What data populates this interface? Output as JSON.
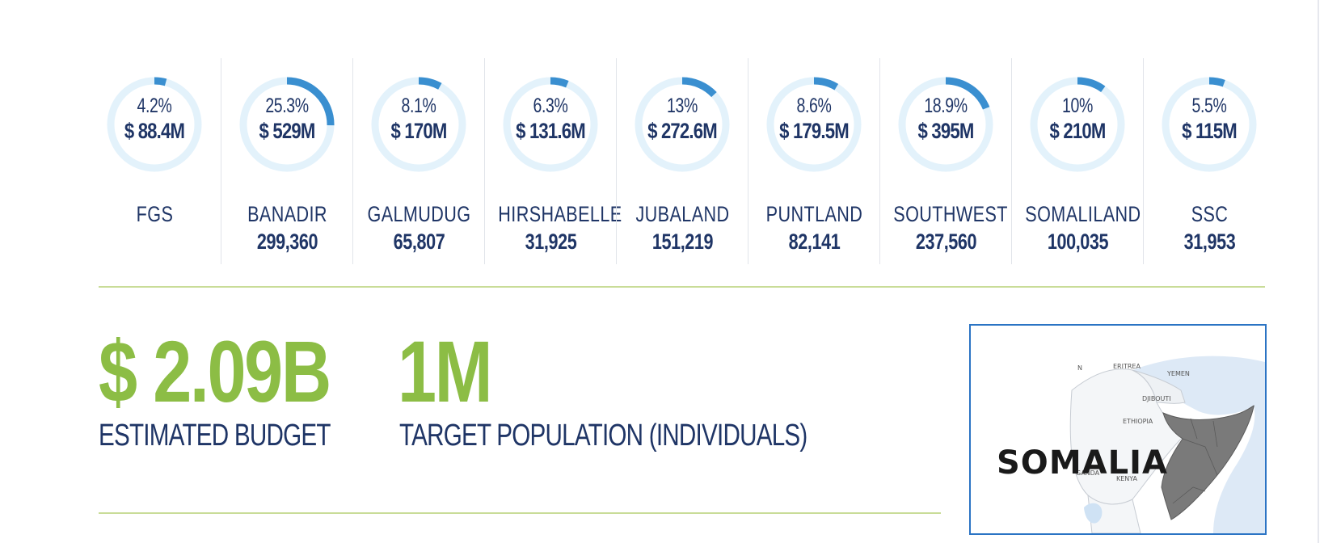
{
  "chart_data": {
    "type": "donut",
    "regions": [
      {
        "name": "FGS",
        "percent": 4.2,
        "percent_label": "4.2%",
        "amount_label": "$ 88.4M",
        "population": ""
      },
      {
        "name": "BANADIR",
        "percent": 25.3,
        "percent_label": "25.3%",
        "amount_label": "$ 529M",
        "population": "299,360"
      },
      {
        "name": "GALMUDUG",
        "percent": 8.1,
        "percent_label": "8.1%",
        "amount_label": "$ 170M",
        "population": "65,807"
      },
      {
        "name": "HIRSHABELLE",
        "percent": 6.3,
        "percent_label": "6.3%",
        "amount_label": "$ 131.6M",
        "population": "31,925"
      },
      {
        "name": "JUBALAND",
        "percent": 13,
        "percent_label": "13%",
        "amount_label": "$ 272.6M",
        "population": "151,219"
      },
      {
        "name": "PUNTLAND",
        "percent": 8.6,
        "percent_label": "8.6%",
        "amount_label": "$ 179.5M",
        "population": "82,141"
      },
      {
        "name": "SOUTHWEST",
        "percent": 18.9,
        "percent_label": "18.9%",
        "amount_label": "$ 395M",
        "population": "237,560"
      },
      {
        "name": "SOMALILAND",
        "percent": 10,
        "percent_label": "10%",
        "amount_label": "$ 210M",
        "population": "100,035"
      },
      {
        "name": "SSC",
        "percent": 5.5,
        "percent_label": "5.5%",
        "amount_label": "$ 115M",
        "population": "31,953"
      }
    ],
    "colors": {
      "ring_track": "#e3f2fb",
      "ring_fill": "#3a8fd0"
    }
  },
  "summary": {
    "budget_value": "$ 2.09B",
    "budget_label": "ESTIMATED BUDGET",
    "population_value": "1M",
    "population_label": "TARGET POPULATION (INDIVIDUALS)",
    "accent_color": "#8cbd45",
    "text_color": "#1f3566"
  },
  "map": {
    "title": "SOMALIA",
    "labels": {
      "n": "N",
      "eritrea": "ERITREA",
      "yemen": "YEMEN",
      "djibouti": "DJIBOUTI",
      "ethiopia": "ETHIOPIA",
      "kenya": "KENYA",
      "uganda": "GANDA"
    }
  }
}
